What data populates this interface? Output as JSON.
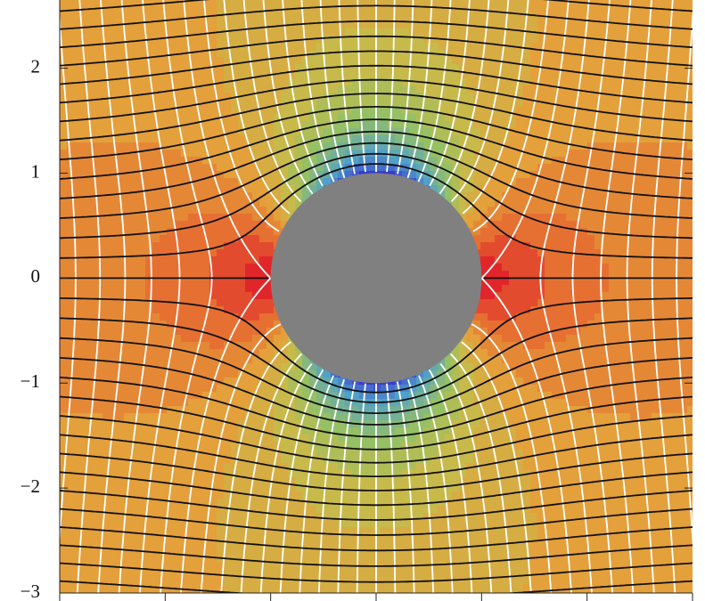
{
  "chart_data": {
    "type": "contour",
    "xlim": [
      -3,
      3
    ],
    "xticks": [
      -3,
      -2,
      -1,
      0,
      1,
      2,
      3
    ],
    "ylim": [
      -3,
      2.65
    ],
    "yticks": [
      {
        "value": -3,
        "label": "−3"
      },
      {
        "value": -2,
        "label": "−2"
      },
      {
        "value": -1,
        "label": "−1"
      },
      0,
      1,
      2
    ]
  }
}
